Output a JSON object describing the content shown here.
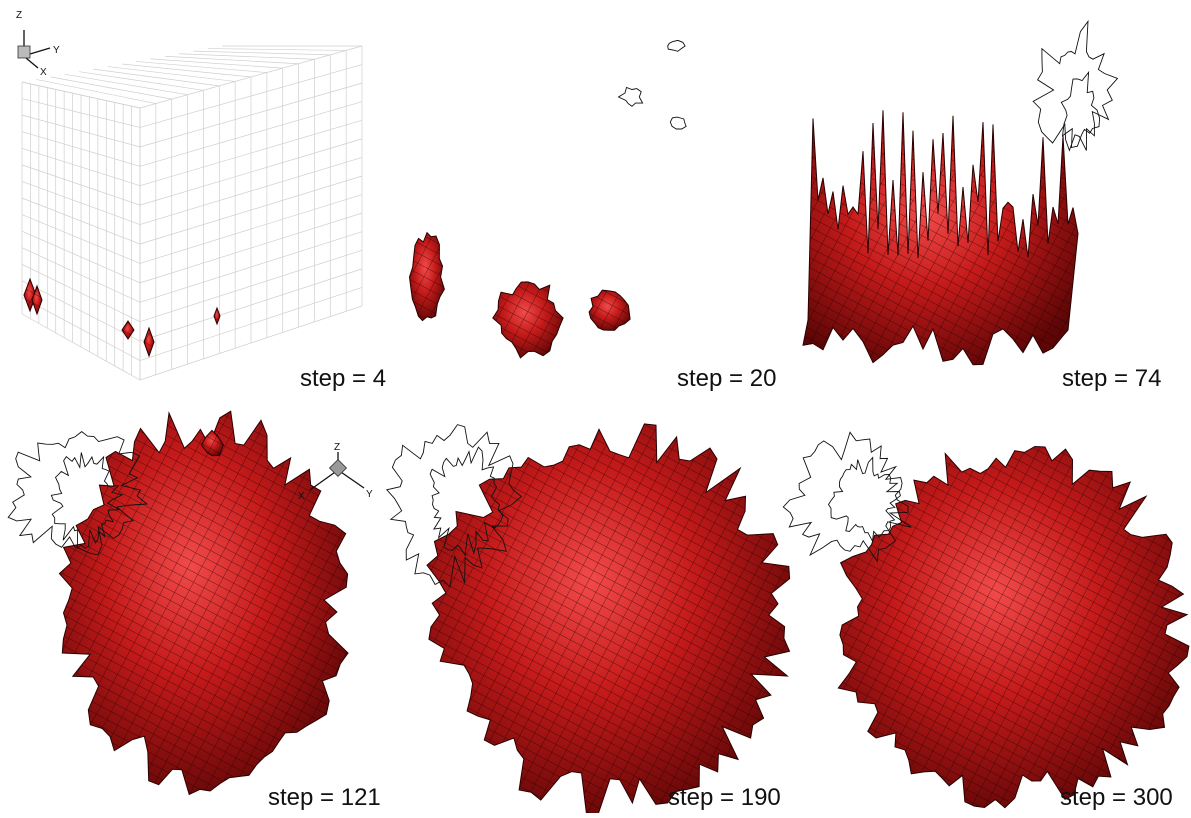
{
  "panels": [
    {
      "label": "step = 4"
    },
    {
      "label": "step = 20"
    },
    {
      "label": "step = 74"
    },
    {
      "label": "step = 121"
    },
    {
      "label": "step = 190"
    },
    {
      "label": "step = 300"
    }
  ],
  "axis_triads": [
    {
      "z": "Z",
      "y": "Y",
      "x": "X"
    },
    {
      "z": "Z",
      "y": "Y",
      "x": "X"
    }
  ]
}
